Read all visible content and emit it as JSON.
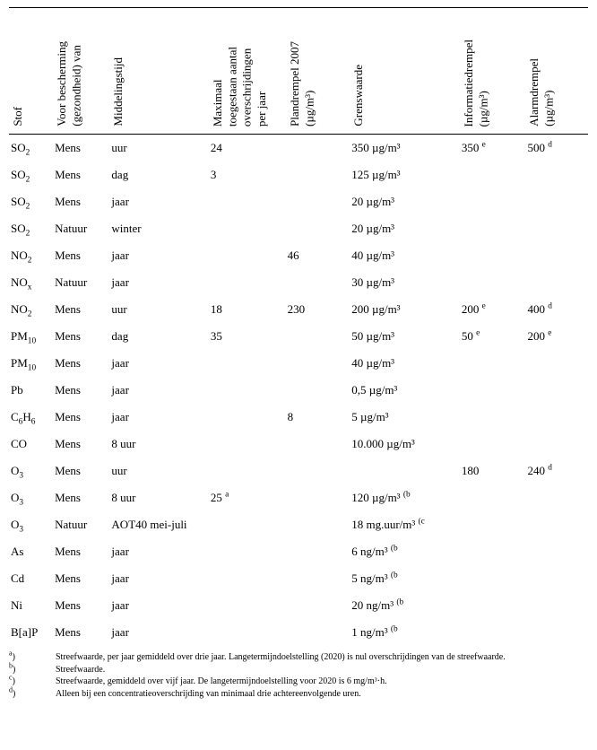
{
  "columns": {
    "stof": "Stof",
    "bescherming": "Voor bescherming\n(gezondheid) van",
    "middelingstijd": "Middelingstijd",
    "maximaal": "Maximaal\ntoegestaan aantal\noverschrijdingen\nper jaar",
    "plandrempel": "Plandrempel 2007\n(µg/m³)",
    "grenswaarde": "Grenswaarde",
    "informatiedrempel": "Informatiedrempel\n(µg/m³)",
    "alarmdrempel": "Alarmdrempel\n(µg/m³)"
  },
  "rows": [
    {
      "stof": "SO2",
      "sub": "2",
      "bescherming": "Mens",
      "midd": "uur",
      "max": "24",
      "plan": "",
      "grens": "350 µg/m³",
      "info": "350",
      "info_note": "e",
      "alarm": "500",
      "alarm_note": "d"
    },
    {
      "stof": "SO2",
      "sub": "2",
      "bescherming": "Mens",
      "midd": "dag",
      "max": "3",
      "plan": "",
      "grens": "125 µg/m³",
      "info": "",
      "alarm": ""
    },
    {
      "stof": "SO2",
      "sub": "2",
      "bescherming": "Mens",
      "midd": "jaar",
      "max": "",
      "plan": "",
      "grens": "20 µg/m³",
      "info": "",
      "alarm": ""
    },
    {
      "stof": "SO2",
      "sub": "2",
      "bescherming": "Natuur",
      "midd": "winter",
      "max": "",
      "plan": "",
      "grens": "20 µg/m³",
      "info": "",
      "alarm": ""
    },
    {
      "stof": "NO2",
      "sub": "2",
      "bescherming": "Mens",
      "midd": "jaar",
      "max": "",
      "plan": "46",
      "grens": "40 µg/m³",
      "info": "",
      "alarm": ""
    },
    {
      "stof": "NOx",
      "sub": "x",
      "bescherming": "Natuur",
      "midd": "jaar",
      "max": "",
      "plan": "",
      "grens": "30 µg/m³",
      "info": "",
      "alarm": ""
    },
    {
      "stof": "NO2",
      "sub": "2",
      "bescherming": "Mens",
      "midd": "uur",
      "max": "18",
      "plan": "230",
      "grens": "200 µg/m³",
      "info": "200",
      "info_note": "e",
      "alarm": "400",
      "alarm_note": "d"
    },
    {
      "stof": "PM10",
      "sub": "10",
      "bescherming": "Mens",
      "midd": "dag",
      "max": "35",
      "plan": "",
      "grens": "50 µg/m³",
      "info": "50",
      "info_note": "e",
      "alarm": "200",
      "alarm_note": "e"
    },
    {
      "stof": "PM10",
      "sub": "10",
      "bescherming": "Mens",
      "midd": "jaar",
      "max": "",
      "plan": "",
      "grens": "40 µg/m³",
      "info": "",
      "alarm": ""
    },
    {
      "stof": "Pb",
      "bescherming": "Mens",
      "midd": "jaar",
      "max": "",
      "plan": "",
      "grens": "0,5 µg/m³",
      "info": "",
      "alarm": ""
    },
    {
      "stof": "C6H6",
      "sub1": "6",
      "sub2": "6",
      "bescherming": "Mens",
      "midd": "jaar",
      "max": "",
      "plan": "8",
      "grens": "5 µg/m³",
      "info": "",
      "alarm": ""
    },
    {
      "stof": "CO",
      "bescherming": "Mens",
      "midd": "8 uur",
      "max": "",
      "plan": "",
      "grens": "10.000 µg/m³",
      "info": "",
      "alarm": ""
    },
    {
      "stof": "O3",
      "sub": "3",
      "bescherming": "Mens",
      "midd": "uur",
      "max": "",
      "plan": "",
      "grens": "",
      "info": "180",
      "alarm": "240",
      "alarm_note": "d"
    },
    {
      "stof": "O3",
      "sub": "3",
      "bescherming": "Mens",
      "midd": "8 uur",
      "max": "25",
      "max_note": "a",
      "plan": "",
      "grens": "120 µg/m³",
      "grens_note": "(b",
      "info": "",
      "alarm": ""
    },
    {
      "stof": "O3",
      "sub": "3",
      "bescherming": "Natuur",
      "midd": "AOT40 mei-juli",
      "max": "",
      "plan": "",
      "grens": "18 mg.uur/m³",
      "grens_note": "(c",
      "info": "",
      "alarm": ""
    },
    {
      "stof": "As",
      "bescherming": "Mens",
      "midd": "jaar",
      "max": "",
      "plan": "",
      "grens": "6 ng/m³",
      "grens_note": "(b",
      "info": "",
      "alarm": ""
    },
    {
      "stof": "Cd",
      "bescherming": "Mens",
      "midd": "jaar",
      "max": "",
      "plan": "",
      "grens": "5 ng/m³",
      "grens_note": "(b",
      "info": "",
      "alarm": ""
    },
    {
      "stof": "Ni",
      "bescherming": "Mens",
      "midd": "jaar",
      "max": "",
      "plan": "",
      "grens": "20 ng/m³",
      "grens_note": "(b",
      "info": "",
      "alarm": ""
    },
    {
      "stof": "B[a]P",
      "bescherming": "Mens",
      "midd": "jaar",
      "max": "",
      "plan": "",
      "grens": "1 ng/m³",
      "grens_note": "(b",
      "info": "",
      "alarm": ""
    }
  ],
  "footnotes": [
    {
      "mark": "a",
      "text": "Streefwaarde, per jaar gemiddeld over drie jaar. Langetermijndoelstelling (2020) is nul overschrijdingen van de streefwaarde."
    },
    {
      "mark": "b",
      "text": "Streefwaarde."
    },
    {
      "mark": "c",
      "text": "Streefwaarde, gemiddeld over vijf jaar. De langetermijndoelstelling voor 2020 is 6 mg/m³·h."
    },
    {
      "mark": "d",
      "text": "Alleen bij een concentratieoverschrijding van minimaal drie achtereenvolgende uren."
    }
  ]
}
